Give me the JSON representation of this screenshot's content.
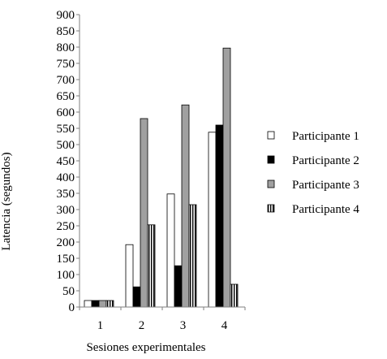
{
  "chart_data": {
    "type": "bar",
    "title": "",
    "xlabel": "Sesiones experimentales",
    "ylabel": "Latencia (segundos)",
    "categories": [
      "1",
      "2",
      "3",
      "4"
    ],
    "ylim": [
      0,
      900
    ],
    "ytick_step": 50,
    "yticks": [
      "0",
      "50",
      "100",
      "150",
      "200",
      "250",
      "300",
      "350",
      "400",
      "450",
      "500",
      "550",
      "600",
      "650",
      "700",
      "750",
      "800",
      "850",
      "900"
    ],
    "grid": false,
    "legend_position": "right",
    "series": [
      {
        "name": "Participante 1",
        "fill": "#ffffff",
        "pattern": "solid",
        "values": [
          20,
          192,
          348,
          538
        ]
      },
      {
        "name": "Participante 2",
        "fill": "#000000",
        "pattern": "solid",
        "values": [
          20,
          62,
          127,
          560
        ]
      },
      {
        "name": "Participante 3",
        "fill": "#a0a0a0",
        "pattern": "solid",
        "values": [
          20,
          580,
          622,
          797
        ]
      },
      {
        "name": "Participante 4",
        "fill": "#ffffff",
        "pattern": "vertical-stripes",
        "values": [
          20,
          253,
          315,
          70
        ]
      }
    ]
  }
}
